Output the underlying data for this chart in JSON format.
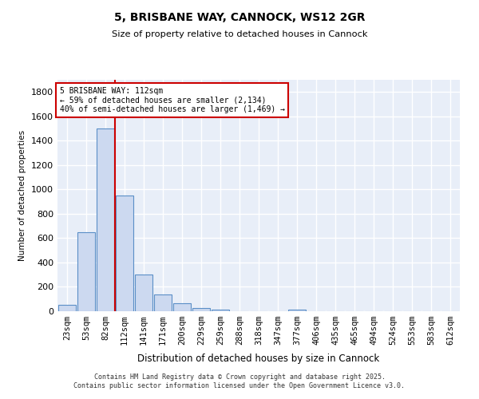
{
  "title": "5, BRISBANE WAY, CANNOCK, WS12 2GR",
  "subtitle": "Size of property relative to detached houses in Cannock",
  "xlabel": "Distribution of detached houses by size in Cannock",
  "ylabel": "Number of detached properties",
  "categories": [
    "23sqm",
    "53sqm",
    "82sqm",
    "112sqm",
    "141sqm",
    "171sqm",
    "200sqm",
    "229sqm",
    "259sqm",
    "288sqm",
    "318sqm",
    "347sqm",
    "377sqm",
    "406sqm",
    "435sqm",
    "465sqm",
    "494sqm",
    "524sqm",
    "553sqm",
    "583sqm",
    "612sqm"
  ],
  "values": [
    50,
    650,
    1500,
    950,
    300,
    140,
    65,
    25,
    10,
    0,
    0,
    0,
    15,
    0,
    0,
    0,
    0,
    0,
    0,
    0,
    0
  ],
  "bar_color": "#ccd9f0",
  "bar_edge_color": "#5b8fc7",
  "red_line_index": 2.5,
  "property_label": "5 BRISBANE WAY: 112sqm",
  "annotation_line1": "← 59% of detached houses are smaller (2,134)",
  "annotation_line2": "40% of semi-detached houses are larger (1,469) →",
  "annotation_box_color": "#ffffff",
  "annotation_box_edge_color": "#cc0000",
  "red_line_color": "#cc0000",
  "ylim": [
    0,
    1900
  ],
  "yticks": [
    0,
    200,
    400,
    600,
    800,
    1000,
    1200,
    1400,
    1600,
    1800
  ],
  "background_color": "#e8eef8",
  "grid_color": "#ffffff",
  "footer_line1": "Contains HM Land Registry data © Crown copyright and database right 2025.",
  "footer_line2": "Contains public sector information licensed under the Open Government Licence v3.0."
}
